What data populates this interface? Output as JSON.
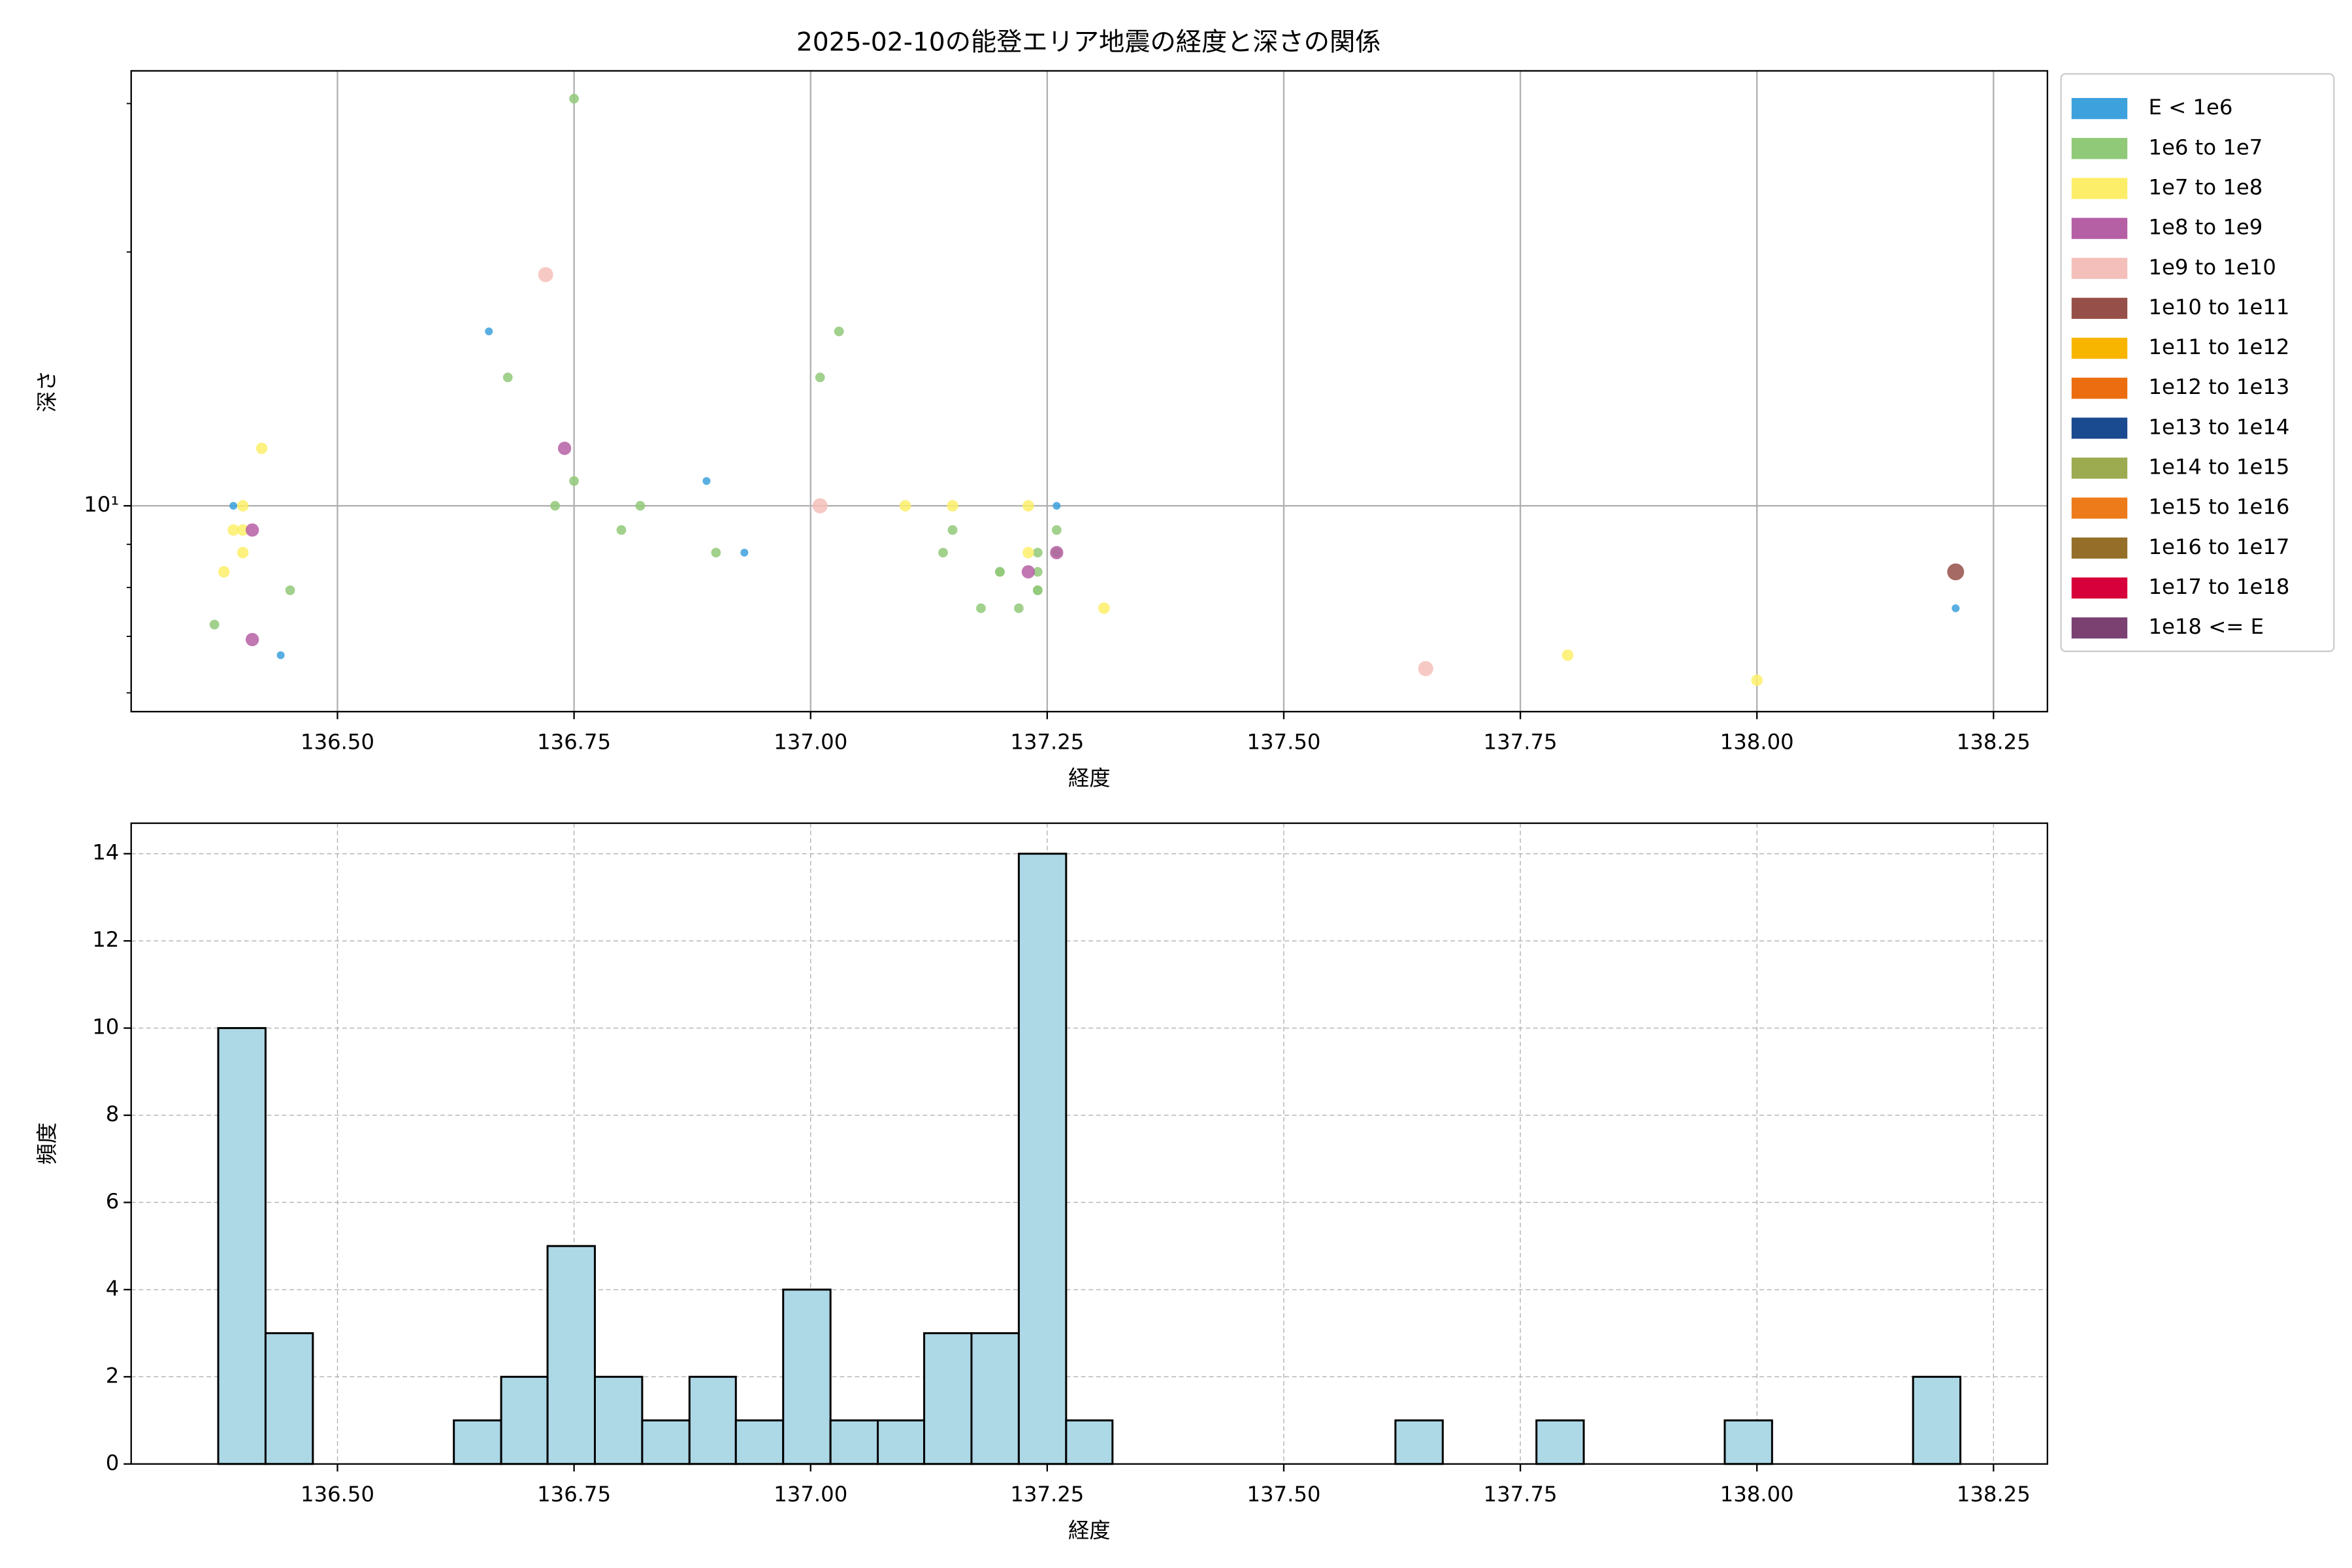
{
  "chart_data": [
    {
      "type": "scatter",
      "title": "2025-02-10の能登エリア地震の経度と深さの関係",
      "xlabel": "経度",
      "ylabel": "深さ",
      "xlim": [
        136.282,
        138.307
      ],
      "ylim": [
        5.7,
        32.8
      ],
      "log_y": true,
      "grid": true,
      "legend": "outside right",
      "xticks": [
        {
          "value": 136.5,
          "label": "136.50"
        },
        {
          "value": 136.75,
          "label": "136.75"
        },
        {
          "value": 137,
          "label": "137.00"
        },
        {
          "value": 137.25,
          "label": "137.25"
        },
        {
          "value": 137.5,
          "label": "137.50"
        },
        {
          "value": 137.75,
          "label": "137.75"
        },
        {
          "value": 138,
          "label": "138.00"
        },
        {
          "value": 138.25,
          "label": "138.25"
        }
      ],
      "yticks": [
        {
          "value": 10,
          "label": "10¹"
        }
      ],
      "yticks_minor": [
        6,
        7,
        8,
        9,
        20,
        30
      ],
      "series": [
        {
          "name": "E < 1e6",
          "color": "#3ca1dc",
          "x": [
            136.39,
            136.44,
            136.66,
            136.89,
            136.93,
            137.26,
            138.21
          ],
          "values": [
            10,
            6.65,
            16.1,
            10.7,
            8.8,
            10,
            7.56
          ]
        },
        {
          "name": "1e6 to 1e7",
          "color": "#90c978",
          "x": [
            136.75,
            136.37,
            136.45,
            136.68,
            136.73,
            136.75,
            136.8,
            136.82,
            136.9,
            137.01,
            137.03,
            137.14,
            137.15,
            137.18,
            137.2,
            137.2,
            137.22,
            137.24,
            137.24,
            137.24,
            137.26,
            137.26,
            137.26,
            137.24
          ],
          "values": [
            30.4,
            7.23,
            7.94,
            14.2,
            10,
            10.7,
            9.36,
            10,
            8.8,
            14.2,
            16.1,
            8.8,
            9.36,
            7.56,
            8.35,
            8.35,
            7.56,
            7.94,
            7.94,
            8.35,
            9.36,
            8.8,
            8.8,
            8.8
          ]
        },
        {
          "name": "1e7 to 1e8",
          "color": "#fdee6a",
          "x": [
            136.42,
            136.38,
            136.39,
            136.4,
            136.4,
            137.1,
            137.15,
            137.23,
            137.23,
            137.31,
            137.8,
            138.0,
            136.4
          ],
          "values": [
            11.7,
            8.35,
            9.36,
            8.8,
            10,
            10,
            10,
            10,
            8.8,
            7.56,
            6.65,
            6.21,
            9.36
          ]
        },
        {
          "name": "1e8 to 1e9",
          "color": "#b55fa4",
          "x": [
            136.41,
            136.41,
            136.74,
            137.23,
            137.26
          ],
          "values": [
            9.36,
            6.94,
            11.7,
            8.35,
            8.8
          ]
        },
        {
          "name": "1e9 to 1e10",
          "color": "#f4bfba",
          "x": [
            136.72,
            137.01,
            137.65
          ],
          "values": [
            18.8,
            10,
            6.41
          ]
        },
        {
          "name": "1e10 to 1e11",
          "color": "#975049",
          "x": [
            138.21
          ],
          "values": [
            8.35
          ]
        },
        {
          "name": "1e11 to 1e12",
          "color": "#f8b500",
          "x": [],
          "values": []
        },
        {
          "name": "1e12 to 1e13",
          "color": "#ec6d0f",
          "x": [],
          "values": []
        },
        {
          "name": "1e13 to 1e14",
          "color": "#1a4a8f",
          "x": [],
          "values": []
        },
        {
          "name": "1e14 to 1e15",
          "color": "#9cab4f",
          "x": [],
          "values": []
        },
        {
          "name": "1e15 to 1e16",
          "color": "#ee7b1a",
          "x": [],
          "values": []
        },
        {
          "name": "1e16 to 1e17",
          "color": "#956f29",
          "x": [],
          "values": []
        },
        {
          "name": "1e17 to 1e18",
          "color": "#d7003a",
          "x": [],
          "values": []
        },
        {
          "name": "1e18 <= E",
          "color": "#7a4171",
          "x": [],
          "values": []
        }
      ]
    },
    {
      "type": "histogram",
      "xlabel": "経度",
      "ylabel": "頻度",
      "color": "#add8e6",
      "edgecolor": "#000000",
      "xlim": [
        136.282,
        138.307
      ],
      "ylim": [
        0,
        14.7
      ],
      "grid": true,
      "grid_style": "dashed",
      "xticks": [
        {
          "value": 136.5,
          "label": "136.50"
        },
        {
          "value": 136.75,
          "label": "136.75"
        },
        {
          "value": 137,
          "label": "137.00"
        },
        {
          "value": 137.25,
          "label": "137.25"
        },
        {
          "value": 137.5,
          "label": "137.50"
        },
        {
          "value": 137.75,
          "label": "137.75"
        },
        {
          "value": 138,
          "label": "138.00"
        },
        {
          "value": 138.25,
          "label": "138.25"
        }
      ],
      "yticks": [
        0,
        2,
        4,
        6,
        8,
        10,
        12,
        14
      ],
      "bins": [
        136.374,
        136.424,
        136.474,
        136.523,
        136.573,
        136.623,
        136.673,
        136.722,
        136.772,
        136.822,
        136.872,
        136.921,
        136.971,
        137.021,
        137.071,
        137.12,
        137.17,
        137.22,
        137.27,
        137.319,
        137.369,
        137.419,
        137.469,
        137.518,
        137.568,
        137.618,
        137.668,
        137.717,
        137.767,
        137.817,
        137.867,
        137.916,
        137.966,
        138.016,
        138.066,
        138.115,
        138.165,
        138.215
      ],
      "values": [
        10,
        3,
        0,
        0,
        0,
        1,
        2,
        5,
        2,
        1,
        2,
        1,
        4,
        1,
        1,
        3,
        3,
        14,
        1,
        0,
        0,
        0,
        0,
        0,
        0,
        1,
        0,
        0,
        1,
        0,
        0,
        0,
        1,
        0,
        0,
        0,
        2
      ]
    }
  ]
}
